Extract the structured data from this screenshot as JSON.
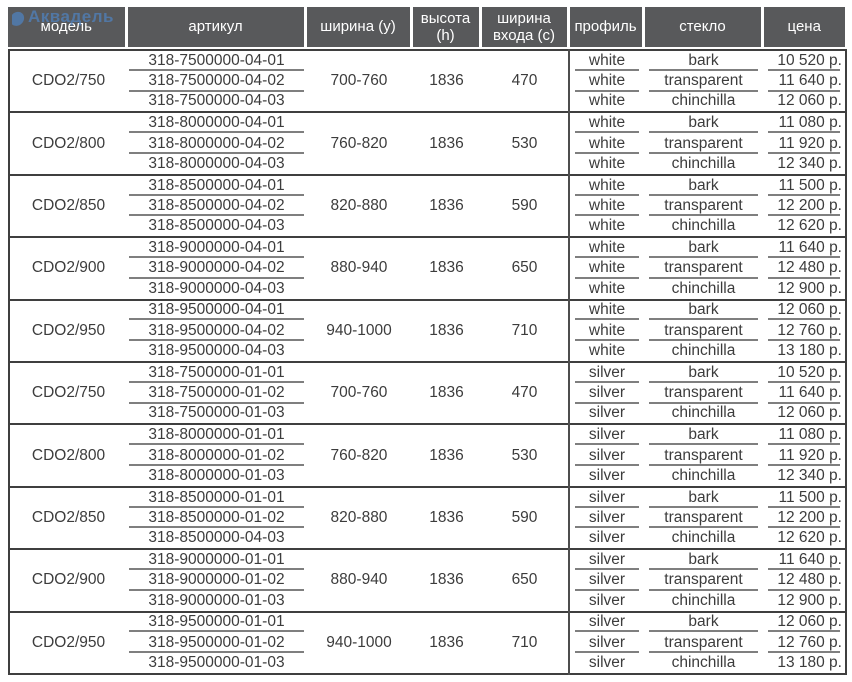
{
  "watermark": {
    "text": "Аквадель"
  },
  "colors": {
    "header_bg": "#58595b",
    "header_text": "#ffffff",
    "body_text": "#3c3c3c",
    "group_border": "#3f3f3f",
    "row_separator": "#7f7f7f",
    "watermark_blue": "#4f81bd"
  },
  "table": {
    "headers": [
      "модель",
      "артикул",
      "ширина (y)",
      "высота (h)",
      "ширина входа (c)",
      "профиль",
      "стекло",
      "цена"
    ],
    "groups": [
      {
        "model": "CDO2/750",
        "width_y": "700-760",
        "height_h": "1836",
        "entry_c": "470",
        "rows": [
          {
            "sku": "318-7500000-04-01",
            "profile": "white",
            "glass": "bark",
            "price": "10 520 р."
          },
          {
            "sku": "318-7500000-04-02",
            "profile": "white",
            "glass": "transparent",
            "price": "11 640 р."
          },
          {
            "sku": "318-7500000-04-03",
            "profile": "white",
            "glass": "chinchilla",
            "price": "12 060 р."
          }
        ]
      },
      {
        "model": "CDO2/800",
        "width_y": "760-820",
        "height_h": "1836",
        "entry_c": "530",
        "rows": [
          {
            "sku": "318-8000000-04-01",
            "profile": "white",
            "glass": "bark",
            "price": "11 080 р."
          },
          {
            "sku": "318-8000000-04-02",
            "profile": "white",
            "glass": "transparent",
            "price": "11 920 р."
          },
          {
            "sku": "318-8000000-04-03",
            "profile": "white",
            "glass": "chinchilla",
            "price": "12 340 р."
          }
        ]
      },
      {
        "model": "CDO2/850",
        "width_y": "820-880",
        "height_h": "1836",
        "entry_c": "590",
        "rows": [
          {
            "sku": "318-8500000-04-01",
            "profile": "white",
            "glass": "bark",
            "price": "11 500 р."
          },
          {
            "sku": "318-8500000-04-02",
            "profile": "white",
            "glass": "transparent",
            "price": "12 200 р."
          },
          {
            "sku": "318-8500000-04-03",
            "profile": "white",
            "glass": "chinchilla",
            "price": "12 620 р."
          }
        ]
      },
      {
        "model": "CDO2/900",
        "width_y": "880-940",
        "height_h": "1836",
        "entry_c": "650",
        "rows": [
          {
            "sku": "318-9000000-04-01",
            "profile": "white",
            "glass": "bark",
            "price": "11 640 р."
          },
          {
            "sku": "318-9000000-04-02",
            "profile": "white",
            "glass": "transparent",
            "price": "12 480 р."
          },
          {
            "sku": "318-9000000-04-03",
            "profile": "white",
            "glass": "chinchilla",
            "price": "12 900 р."
          }
        ]
      },
      {
        "model": "CDO2/950",
        "width_y": "940-1000",
        "height_h": "1836",
        "entry_c": "710",
        "rows": [
          {
            "sku": "318-9500000-04-01",
            "profile": "white",
            "glass": "bark",
            "price": "12 060 р."
          },
          {
            "sku": "318-9500000-04-02",
            "profile": "white",
            "glass": "transparent",
            "price": "12 760 р."
          },
          {
            "sku": "318-9500000-04-03",
            "profile": "white",
            "glass": "chinchilla",
            "price": "13 180 р."
          }
        ]
      },
      {
        "model": "CDO2/750",
        "width_y": "700-760",
        "height_h": "1836",
        "entry_c": "470",
        "rows": [
          {
            "sku": "318-7500000-01-01",
            "profile": "silver",
            "glass": "bark",
            "price": "10 520 р."
          },
          {
            "sku": "318-7500000-01-02",
            "profile": "silver",
            "glass": "transparent",
            "price": "11 640 р."
          },
          {
            "sku": "318-7500000-01-03",
            "profile": "silver",
            "glass": "chinchilla",
            "price": "12 060 р."
          }
        ]
      },
      {
        "model": "CDO2/800",
        "width_y": "760-820",
        "height_h": "1836",
        "entry_c": "530",
        "rows": [
          {
            "sku": "318-8000000-01-01",
            "profile": "silver",
            "glass": "bark",
            "price": "11 080 р."
          },
          {
            "sku": "318-8000000-01-02",
            "profile": "silver",
            "glass": "transparent",
            "price": "11 920 р."
          },
          {
            "sku": "318-8000000-01-03",
            "profile": "silver",
            "glass": "chinchilla",
            "price": "12 340 р."
          }
        ]
      },
      {
        "model": "CDO2/850",
        "width_y": "820-880",
        "height_h": "1836",
        "entry_c": "590",
        "rows": [
          {
            "sku": "318-8500000-01-01",
            "profile": "silver",
            "glass": "bark",
            "price": "11 500 р."
          },
          {
            "sku": "318-8500000-01-02",
            "profile": "silver",
            "glass": "transparent",
            "price": "12 200 р."
          },
          {
            "sku": "318-8500000-04-03",
            "profile": "silver",
            "glass": "chinchilla",
            "price": "12 620 р."
          }
        ]
      },
      {
        "model": "CDO2/900",
        "width_y": "880-940",
        "height_h": "1836",
        "entry_c": "650",
        "rows": [
          {
            "sku": "318-9000000-01-01",
            "profile": "silver",
            "glass": "bark",
            "price": "11 640 р."
          },
          {
            "sku": "318-9000000-01-02",
            "profile": "silver",
            "glass": "transparent",
            "price": "12 480 р."
          },
          {
            "sku": "318-9000000-01-03",
            "profile": "silver",
            "glass": "chinchilla",
            "price": "12 900 р."
          }
        ]
      },
      {
        "model": "CDO2/950",
        "width_y": "940-1000",
        "height_h": "1836",
        "entry_c": "710",
        "rows": [
          {
            "sku": "318-9500000-01-01",
            "profile": "silver",
            "glass": "bark",
            "price": "12 060 р."
          },
          {
            "sku": "318-9500000-01-02",
            "profile": "silver",
            "glass": "transparent",
            "price": "12 760 р."
          },
          {
            "sku": "318-9500000-01-03",
            "profile": "silver",
            "glass": "chinchilla",
            "price": "13 180 р."
          }
        ]
      }
    ]
  }
}
